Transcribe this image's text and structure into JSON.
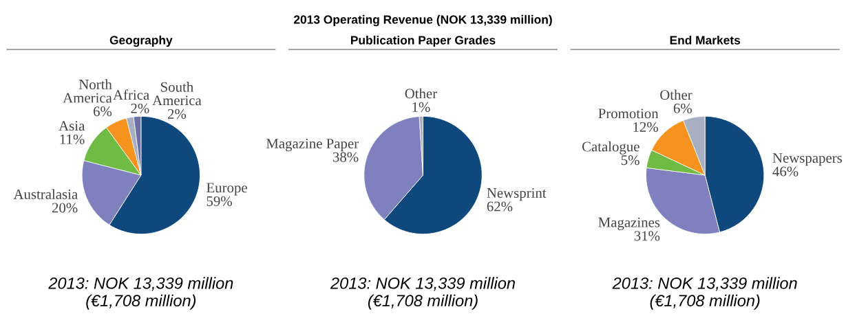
{
  "chart_data": [
    {
      "type": "pie",
      "subtitle": "Geography",
      "categories": [
        "Europe",
        "Australasia",
        "Asia",
        "North America",
        "Africa",
        "South America"
      ],
      "values": [
        59,
        20,
        11,
        6,
        2,
        2
      ],
      "value_labels": [
        "59%",
        "20%",
        "11%",
        "6%",
        "2%",
        "2%"
      ],
      "colors": [
        "#0e487c",
        "#7f80be",
        "#70bb44",
        "#f6921e",
        "#a9afc2",
        "#6b6fa6"
      ],
      "annotations": [
        "2013: NOK 13,339 million\n(€1,708 million)"
      ]
    },
    {
      "type": "pie",
      "title": "2013 Operating Revenue (NOK 13,339 million)",
      "subtitle": "Publication Paper Grades",
      "categories": [
        "Newsprint",
        "Magazine Paper",
        "Other"
      ],
      "values": [
        62,
        38,
        1
      ],
      "value_labels": [
        "62%",
        "38%",
        "1%"
      ],
      "colors": [
        "#0e487c",
        "#7f80be",
        "#a9afc2"
      ],
      "annotations": [
        "2013: NOK 13,339 million\n(€1,708 million)"
      ]
    },
    {
      "type": "pie",
      "subtitle": "End Markets",
      "categories": [
        "Newspapers",
        "Magazines",
        "Catalogue",
        "Promotion",
        "Other"
      ],
      "values": [
        46,
        31,
        5,
        12,
        6
      ],
      "value_labels": [
        "46%",
        "31%",
        "5%",
        "12%",
        "6%"
      ],
      "colors": [
        "#0e487c",
        "#7f80be",
        "#70bb44",
        "#f6921e",
        "#a9afc2"
      ],
      "annotations": [
        "2013: NOK 13,339 million\n(€1,708 million)"
      ]
    }
  ]
}
